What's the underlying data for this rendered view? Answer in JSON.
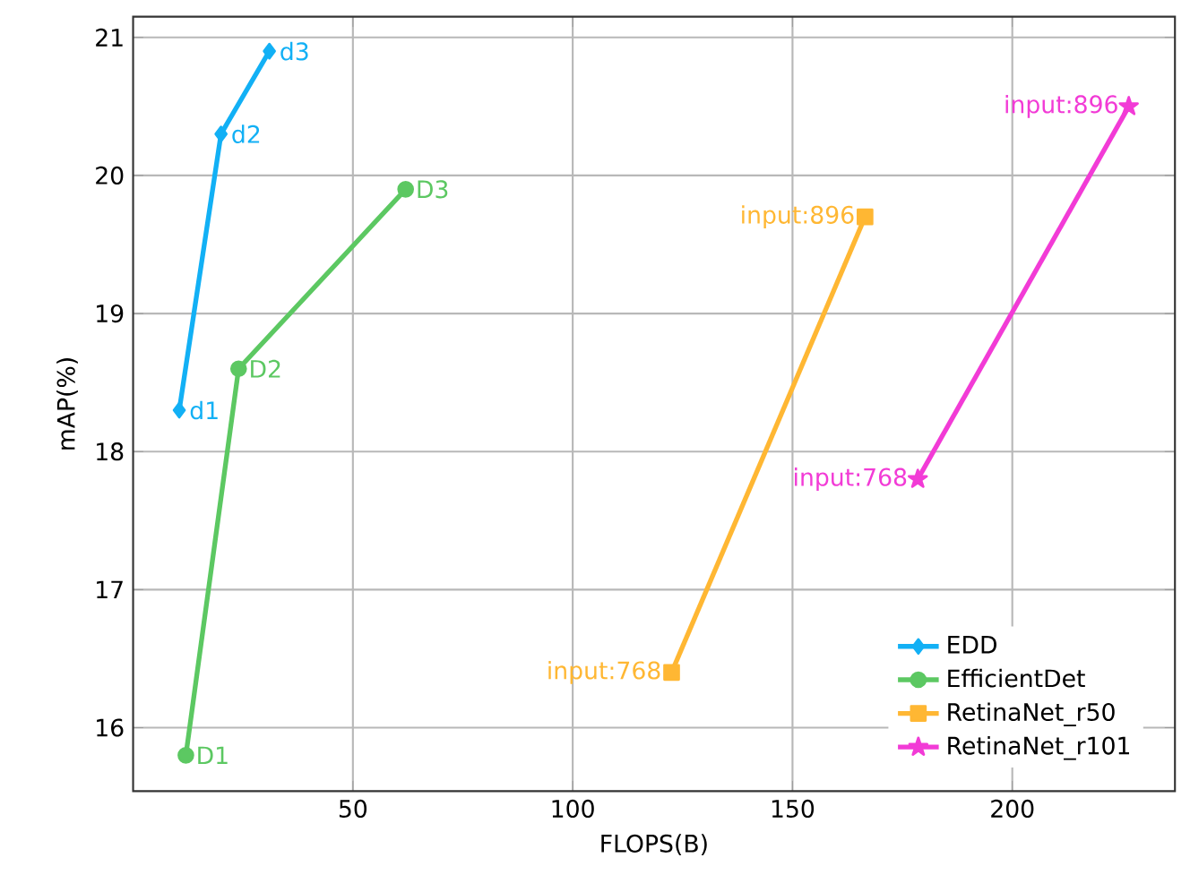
{
  "chart_data": {
    "type": "line",
    "xlabel": "FLOPS(B)",
    "ylabel": "mAP(%)",
    "xlim": [
      0,
      237
    ],
    "ylim": [
      15.54,
      21.15
    ],
    "xticks": [
      50,
      100,
      150,
      200
    ],
    "yticks": [
      16,
      17,
      18,
      19,
      20,
      21
    ],
    "grid": true,
    "legend": "bottom right",
    "line_style": "solid",
    "series": [
      {
        "name": "EDD",
        "color": "#12b0f5",
        "marker": "diamond",
        "x": [
          10.5,
          20,
          31
        ],
        "values": [
          18.3,
          20.3,
          20.9
        ]
      },
      {
        "name": "EfficientDet",
        "color": "#5cc862",
        "marker": "circle",
        "x": [
          12,
          24,
          62
        ],
        "values": [
          15.8,
          18.6,
          19.9
        ]
      },
      {
        "name": "RetinaNet_r50",
        "color": "#ffb733",
        "marker": "square",
        "x": [
          122.5,
          166.5
        ],
        "values": [
          16.4,
          19.7
        ]
      },
      {
        "name": "RetinaNet_r101",
        "color": "#f23bd6",
        "marker": "star",
        "x": [
          178.5,
          226.5
        ],
        "values": [
          17.8,
          20.5
        ]
      }
    ],
    "annotations": [
      {
        "text": "d1",
        "x": 10.5,
        "y": 18.3
      },
      {
        "text": "d2",
        "x": 20,
        "y": 20.3
      },
      {
        "text": "d3",
        "x": 31,
        "y": 20.9
      },
      {
        "text": "D1",
        "x": 12,
        "y": 15.8
      },
      {
        "text": "D2",
        "x": 24,
        "y": 18.6
      },
      {
        "text": "D3",
        "x": 62,
        "y": 19.9
      },
      {
        "text": "input:768",
        "x": 122.5,
        "y": 16.4
      },
      {
        "text": "input:896",
        "x": 166.5,
        "y": 19.7
      },
      {
        "text": "input:768",
        "x": 178.5,
        "y": 17.8
      },
      {
        "text": "input:896",
        "x": 226.5,
        "y": 20.5
      }
    ]
  }
}
